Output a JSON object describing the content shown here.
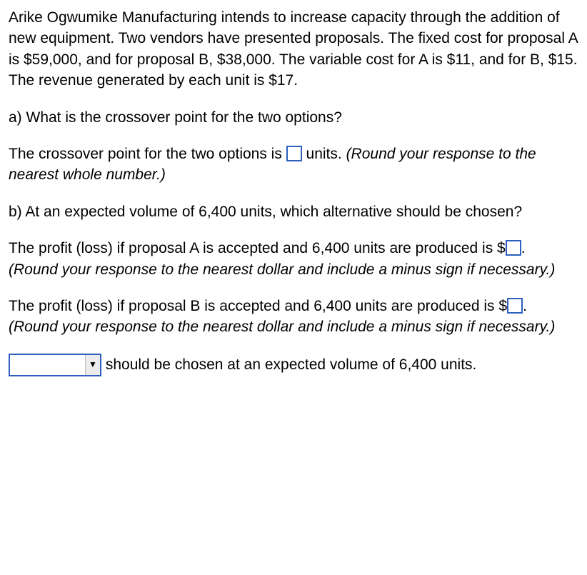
{
  "intro": "Arike Ogwumike Manufacturing intends to increase capacity through the addition of new equipment. Two vendors have presented proposals. The fixed cost for proposal A is $59,000, and for proposal B, $38,000. The variable cost for A is $11, and for B, $15. The revenue generated by each unit is $17.",
  "partA": {
    "question": "a) What is the crossover point for the two options?",
    "answer_pre": "The crossover point for the two options is ",
    "answer_post_units": " units. ",
    "hint": "(Round your response to the nearest whole number.)"
  },
  "partB": {
    "question": "b) At an expected volume of 6,400 units, which alternative should be chosen?",
    "profitA_pre": "The profit (loss) if proposal A is accepted and 6,400 units are produced is $",
    "profitA_post": ". ",
    "hintA": "(Round your response to the nearest dollar and include a minus sign if necessary.)",
    "profitB_pre": "The profit (loss) if proposal B is accepted and 6,400 units are produced is $",
    "profitB_post": ". ",
    "hintB": "(Round your response to the nearest dollar and include a minus sign if necessary.)",
    "choice_post": " should be chosen at an expected volume of 6,400 units."
  },
  "colors": {
    "input_border": "#2d5fbf",
    "select_button_bg": "#ececec"
  }
}
